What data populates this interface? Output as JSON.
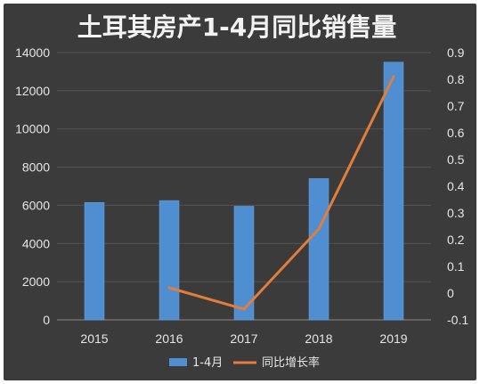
{
  "chart_data": {
    "type": "bar+line",
    "title": "土耳其房产1-4月同比销售量",
    "categories": [
      "2015",
      "2016",
      "2017",
      "2018",
      "2019"
    ],
    "series": [
      {
        "name": "1-4月",
        "type": "bar",
        "axis": "left",
        "values": [
          6150,
          6250,
          5950,
          7400,
          13500
        ],
        "color": "#4f8fd1"
      },
      {
        "name": "同比增长率",
        "type": "line",
        "axis": "right",
        "values": [
          null,
          0.02,
          -0.06,
          0.24,
          0.81
        ],
        "color": "#e27d3a"
      }
    ],
    "y_left": {
      "min": 0,
      "max": 14000,
      "ticks": [
        "0",
        "2000",
        "4000",
        "6000",
        "8000",
        "10000",
        "12000",
        "14000"
      ]
    },
    "y_right": {
      "min": -0.1,
      "max": 0.9,
      "ticks": [
        "-0.1",
        "0",
        "0.1",
        "0.2",
        "0.3",
        "0.4",
        "0.5",
        "0.6",
        "0.7",
        "0.8",
        "0.9"
      ]
    },
    "grid": true,
    "legend_position": "bottom",
    "background": "#3b3b3b"
  }
}
